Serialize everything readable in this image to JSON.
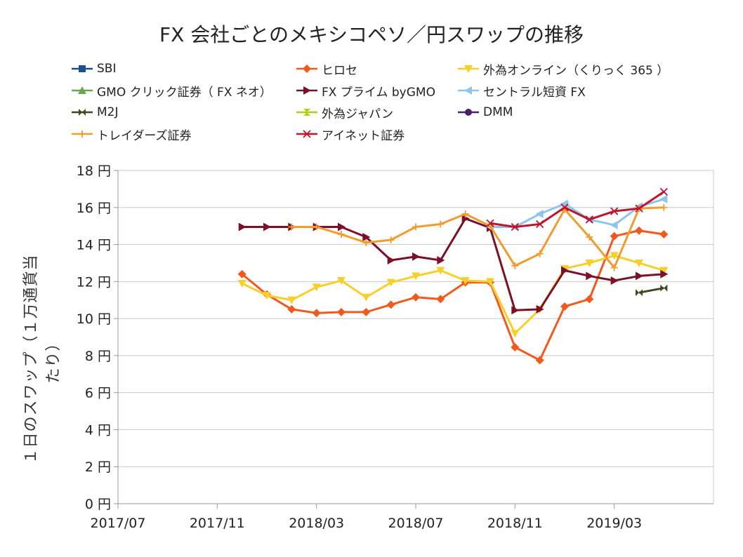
{
  "chart_data": {
    "type": "line",
    "title": "FX 会社ごとのメキシコペソ／円スワップの推移",
    "xlabel": "",
    "ylabel": "１日のスワップ（１万通貨当たり）",
    "ylim": [
      0,
      18
    ],
    "yticks": [
      0,
      2,
      4,
      6,
      8,
      10,
      12,
      14,
      16,
      18
    ],
    "ytick_labels": [
      "0 円",
      "2 円",
      "4 円",
      "6 円",
      "8 円",
      "10 円",
      "12 円",
      "14 円",
      "16 円",
      "18 円"
    ],
    "xlim": [
      2017.5,
      2019.5
    ],
    "xticks": [
      2017.5,
      2017.8333,
      2018.1667,
      2018.5,
      2018.8333,
      2019.1667
    ],
    "xtick_labels": [
      "2017/07",
      "2017/11",
      "2018/03",
      "2018/07",
      "2018/11",
      "2019/03"
    ],
    "grid": true,
    "legend_position": "top",
    "series": [
      {
        "name": "SBI",
        "color": "#1f4e8c",
        "marker": "square",
        "x": [],
        "y": []
      },
      {
        "name": "ヒロセ",
        "color": "#f05a1e",
        "marker": "diamond",
        "x": [
          2017.9167,
          2018.0,
          2018.0833,
          2018.1667,
          2018.25,
          2018.3333,
          2018.4167,
          2018.5,
          2018.5833,
          2018.6667,
          2018.75,
          2018.8333,
          2018.9167,
          2019.0,
          2019.0833,
          2019.1667,
          2019.25,
          2019.3333,
          2019.4167
        ],
        "y": [
          12.4,
          11.3,
          10.5,
          10.3,
          10.35,
          10.35,
          10.75,
          11.15,
          11.05,
          11.95,
          11.95,
          8.45,
          7.75,
          10.65,
          11.05,
          14.45,
          14.75,
          14.55,
          null
        ]
      },
      {
        "name": "外為オンライン（くりっく 365 ）",
        "color": "#f7cf2a",
        "marker": "triangle-down",
        "x": [
          2017.9167,
          2018.0,
          2018.0833,
          2018.1667,
          2018.25,
          2018.3333,
          2018.4167,
          2018.5,
          2018.5833,
          2018.6667,
          2018.75,
          2018.8333,
          2018.9167,
          2019.0,
          2019.0833,
          2019.1667,
          2019.25,
          2019.3333
        ],
        "y": [
          11.9,
          11.25,
          11.0,
          11.7,
          12.05,
          11.15,
          11.95,
          12.3,
          12.6,
          12.05,
          12.0,
          9.2,
          10.5,
          12.7,
          13.0,
          13.4,
          13.0,
          12.6
        ]
      },
      {
        "name": "GMO クリック証券（ FX ネオ）",
        "color": "#6aa84f",
        "marker": "triangle-up",
        "x": [],
        "y": []
      },
      {
        "name": "FX プライム byGMO",
        "color": "#7b1026",
        "marker": "triangle-right",
        "x": [
          2017.9167,
          2018.0,
          2018.0833,
          2018.1667,
          2018.25,
          2018.3333,
          2018.4167,
          2018.5,
          2018.5833,
          2018.6667,
          2018.75,
          2018.8333,
          2018.9167,
          2019.0,
          2019.0833,
          2019.1667,
          2019.25,
          2019.3333
        ],
        "y": [
          14.95,
          14.95,
          14.95,
          14.95,
          14.95,
          14.4,
          13.15,
          13.35,
          13.15,
          15.4,
          14.9,
          10.45,
          10.5,
          12.6,
          12.3,
          12.05,
          12.3,
          12.4
        ]
      },
      {
        "name": "セントラル短資 FX",
        "color": "#8fc4ee",
        "marker": "triangle-left",
        "x": [
          2018.75,
          2018.8333,
          2018.9167,
          2019.0,
          2019.0833,
          2019.1667,
          2019.25,
          2019.3333
        ],
        "y": [
          14.95,
          14.95,
          15.65,
          16.2,
          15.35,
          15.05,
          16.05,
          16.45
        ]
      },
      {
        "name": "M2J",
        "color": "#3b4a1c",
        "marker": "bowtie",
        "x": [
          2019.25,
          2019.3333
        ],
        "y": [
          11.4,
          11.65
        ]
      },
      {
        "name": "外為ジャパン",
        "color": "#b5cc16",
        "marker": "hourglass",
        "x": [],
        "y": []
      },
      {
        "name": "DMM",
        "color": "#4b1f6f",
        "marker": "circle",
        "x": [],
        "y": []
      },
      {
        "name": "トレイダーズ証券",
        "color": "#f29b2e",
        "marker": "plus",
        "x": [
          2018.0833,
          2018.1667,
          2018.25,
          2018.3333,
          2018.4167,
          2018.5,
          2018.5833,
          2018.6667,
          2018.75,
          2018.8333,
          2018.9167,
          2019.0,
          2019.0833,
          2019.1667,
          2019.25,
          2019.3333
        ],
        "y": [
          14.95,
          14.95,
          14.55,
          14.1,
          14.25,
          14.95,
          15.1,
          15.65,
          15.0,
          12.85,
          13.5,
          15.9,
          14.4,
          12.75,
          15.95,
          16.0
        ]
      },
      {
        "name": "アイネット証券",
        "color": "#c0142b",
        "marker": "x",
        "x": [
          2018.75,
          2018.8333,
          2018.9167,
          2019.0,
          2019.0833,
          2019.1667,
          2019.25,
          2019.3333
        ],
        "y": [
          15.15,
          14.95,
          15.1,
          16.0,
          15.35,
          15.8,
          15.95,
          16.85
        ]
      }
    ]
  }
}
